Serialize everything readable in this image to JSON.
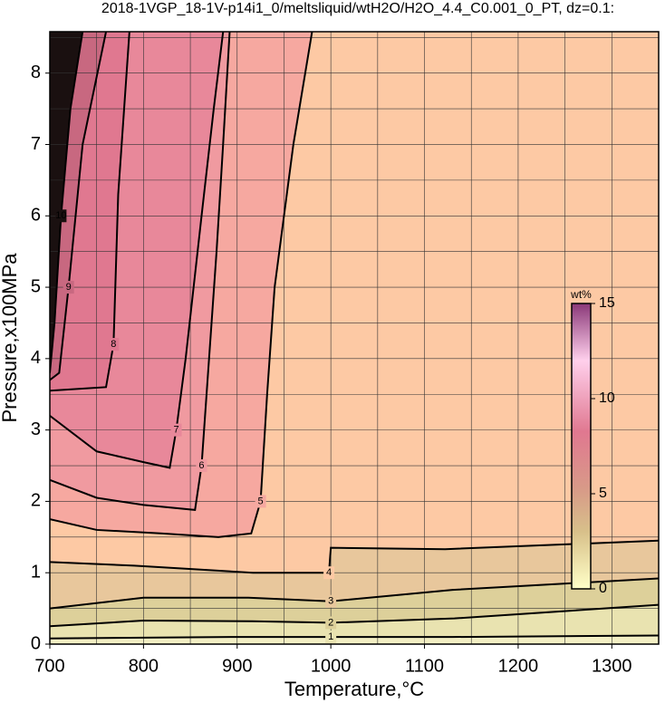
{
  "chart_data": {
    "type": "contour",
    "title": "2018-1VGP_18-1V-p14i1_0/meltsliquid/wtH2O/H2O_4.4_C0.001_0_PT, dz=0.1:",
    "x_label": "Temperature,°C",
    "y_label": "Pressure,x100MPa",
    "xlim": [
      700,
      1350
    ],
    "ylim": [
      0,
      8.58
    ],
    "xticks": [
      700,
      800,
      900,
      1000,
      1100,
      1200,
      1300
    ],
    "yticks": [
      0,
      1,
      2,
      3,
      4,
      5,
      6,
      7,
      8
    ],
    "xgrid_step": 50,
    "ygrid_step": 0.5,
    "base_color": "#f3efc4",
    "contours": [
      {
        "level": 1,
        "color": "#e9e3b0",
        "x": [
          700,
          900,
          1000,
          1130,
          1350
        ],
        "y": [
          0.08,
          0.1,
          0.1,
          0.1,
          0.12
        ]
      },
      {
        "level": 2,
        "color": "#ddd09a",
        "x": [
          700,
          800,
          916,
          1000,
          1132,
          1350
        ],
        "y": [
          0.25,
          0.33,
          0.32,
          0.3,
          0.36,
          0.55
        ]
      },
      {
        "level": 3,
        "color": "#e8c79c",
        "x": [
          700,
          800,
          912,
          1000,
          1130,
          1350
        ],
        "y": [
          0.5,
          0.65,
          0.65,
          0.6,
          0.76,
          0.92
        ]
      },
      {
        "level": 4,
        "color": "#fdc9a4",
        "x": [
          700,
          790,
          917,
          998,
          1000,
          1122,
          1350
        ],
        "y": [
          1.15,
          1.1,
          1.0,
          1.0,
          1.35,
          1.33,
          1.45
        ]
      },
      {
        "level": 5,
        "color": "#f6a8a0",
        "x": [
          700,
          750,
          820,
          880,
          915,
          925,
          932,
          940,
          960,
          980
        ],
        "y": [
          1.75,
          1.6,
          1.55,
          1.5,
          1.55,
          2.0,
          3.5,
          5.0,
          7.0,
          8.58
        ]
      },
      {
        "level": 6,
        "color": "#f09aa0",
        "x": [
          700,
          750,
          800,
          855,
          862,
          870,
          878,
          885,
          892
        ],
        "y": [
          2.3,
          2.05,
          1.95,
          1.88,
          2.5,
          4.0,
          5.5,
          7.0,
          8.58
        ]
      },
      {
        "level": 7,
        "color": "#e8889a",
        "x": [
          700,
          750,
          800,
          828,
          835,
          845,
          862,
          875,
          885
        ],
        "y": [
          3.2,
          2.7,
          2.55,
          2.47,
          3.0,
          4.0,
          6.0,
          7.5,
          8.58
        ]
      },
      {
        "level": 8,
        "color": "#e07890",
        "x": [
          700,
          760,
          768,
          773,
          785
        ],
        "y": [
          3.55,
          3.6,
          4.2,
          6.3,
          8.58
        ]
      },
      {
        "level": 9,
        "color": "#c86880",
        "x": [
          700,
          710,
          720,
          735,
          760
        ],
        "y": [
          3.7,
          3.8,
          5.0,
          7.0,
          8.58
        ]
      },
      {
        "level": 10,
        "color": "#1a1010",
        "x": [
          700,
          705,
          712,
          722,
          735
        ],
        "y": [
          3.8,
          4.5,
          6.0,
          7.5,
          8.58
        ]
      }
    ],
    "colorbar": {
      "label": "wt%",
      "lim": [
        0,
        15
      ],
      "ticks": [
        0,
        5,
        10,
        15
      ]
    }
  }
}
